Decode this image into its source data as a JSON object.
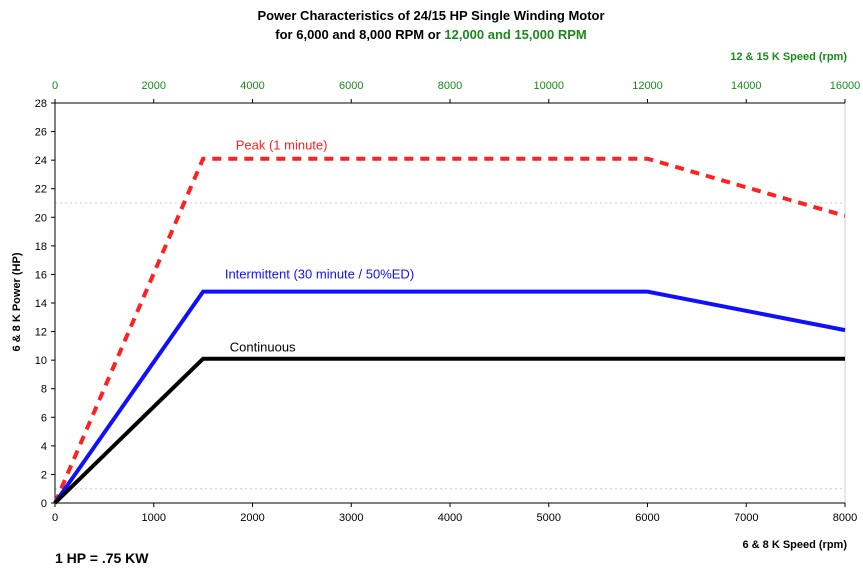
{
  "chart_data": {
    "type": "line",
    "title_line1": "Power Characteristics of 24/15 HP Single Winding Motor",
    "title_line2_black": "for 6,000 and 8,000 RPM or ",
    "title_line2_green": "12,000 and 15,000 RPM",
    "xlabel": "6 &  8 K Speed (rpm)",
    "x2label": "12 & 15 K Speed (rpm)",
    "ylabel": "6 & 8 K Power (HP)",
    "xlim": [
      0,
      8000
    ],
    "x2lim": [
      0,
      16000
    ],
    "ylim": [
      0,
      28
    ],
    "xticks": [
      "0",
      "1000",
      "2000",
      "3000",
      "4000",
      "5000",
      "6000",
      "7000",
      "8000"
    ],
    "x2ticks": [
      "0",
      "2000",
      "4000",
      "6000",
      "8000",
      "10000",
      "12000",
      "14000",
      "16000"
    ],
    "yticks": [
      "0",
      "2",
      "4",
      "6",
      "8",
      "10",
      "12",
      "14",
      "16",
      "18",
      "20",
      "22",
      "24",
      "26",
      "28"
    ],
    "series": [
      {
        "name": "Peak (1 minute)",
        "color": "#ff2020",
        "style": "dashed",
        "x": [
          0,
          1500,
          6000,
          8000
        ],
        "y": [
          0,
          24.1,
          24.1,
          20.1
        ]
      },
      {
        "name": "Intermittent (30 minute / 50%ED)",
        "color": "#1010ff",
        "style": "solid",
        "x": [
          0,
          1500,
          6000,
          8000
        ],
        "y": [
          0,
          14.8,
          14.8,
          12.1
        ]
      },
      {
        "name": "Continuous",
        "color": "#000000",
        "style": "solid",
        "x": [
          0,
          1500,
          8000
        ],
        "y": [
          0,
          10.1,
          10.1
        ]
      }
    ],
    "reference_lines_y": [
      1,
      21
    ],
    "grid": false,
    "colors": {
      "accent_green": "#1a8a1a",
      "grid_dotted": "#cccccc"
    }
  },
  "footnote": "1 HP = .75 KW"
}
